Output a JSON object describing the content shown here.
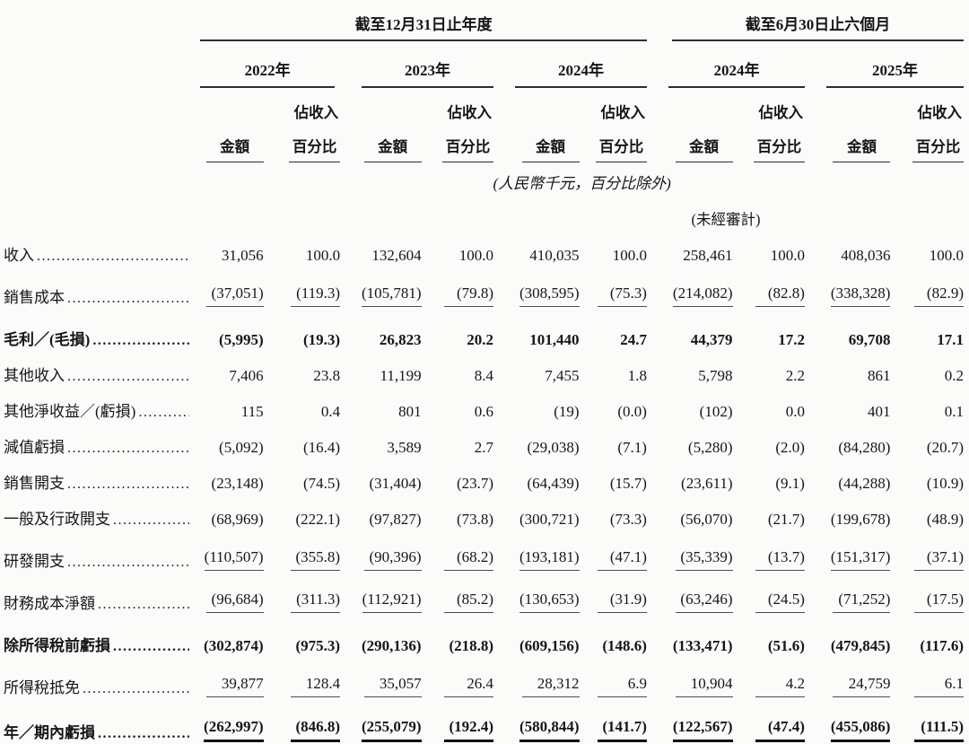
{
  "page": {
    "background": "#fbfbfa",
    "text_color": "#161616"
  },
  "table": {
    "group_headers": [
      {
        "label": "截至12月31日止年度"
      },
      {
        "label": "截至6月30日止六個月"
      }
    ],
    "year_headers": [
      "2022年",
      "2023年",
      "2024年",
      "2024年",
      "2025年"
    ],
    "subheader": {
      "share_label": "佔收入",
      "amount": "金額",
      "percent": "百分比"
    },
    "notes": {
      "units": "(人民幣千元，百分比除外)",
      "unaudited": "(未經審計)"
    },
    "leader_dots": "...........................................................",
    "rows": [
      {
        "label": "收入",
        "bold": false,
        "rule": "none",
        "values": [
          "31,056",
          "100.0",
          "132,604",
          "100.0",
          "410,035",
          "100.0",
          "258,461",
          "100.0",
          "408,036",
          "100.0"
        ]
      },
      {
        "label": "銷售成本",
        "bold": false,
        "rule": "single",
        "values": [
          "(37,051)",
          "(119.3)",
          "(105,781)",
          "(79.8)",
          "(308,595)",
          "(75.3)",
          "(214,082)",
          "(82.8)",
          "(338,328)",
          "(82.9)"
        ]
      },
      {
        "label": "毛利／(毛損)",
        "bold": true,
        "rule": "none",
        "values": [
          "(5,995)",
          "(19.3)",
          "26,823",
          "20.2",
          "101,440",
          "24.7",
          "44,379",
          "17.2",
          "69,708",
          "17.1"
        ]
      },
      {
        "label": "其他收入",
        "bold": false,
        "rule": "none",
        "values": [
          "7,406",
          "23.8",
          "11,199",
          "8.4",
          "7,455",
          "1.8",
          "5,798",
          "2.2",
          "861",
          "0.2"
        ]
      },
      {
        "label": "其他淨收益／(虧損)",
        "bold": false,
        "rule": "none",
        "values": [
          "115",
          "0.4",
          "801",
          "0.6",
          "(19)",
          "(0.0)",
          "(102)",
          "0.0",
          "401",
          "0.1"
        ]
      },
      {
        "label": "減值虧損",
        "bold": false,
        "rule": "none",
        "values": [
          "(5,092)",
          "(16.4)",
          "3,589",
          "2.7",
          "(29,038)",
          "(7.1)",
          "(5,280)",
          "(2.0)",
          "(84,280)",
          "(20.7)"
        ]
      },
      {
        "label": "銷售開支",
        "bold": false,
        "rule": "none",
        "values": [
          "(23,148)",
          "(74.5)",
          "(31,404)",
          "(23.7)",
          "(64,439)",
          "(15.7)",
          "(23,611)",
          "(9.1)",
          "(44,288)",
          "(10.9)"
        ]
      },
      {
        "label": "一般及行政開支",
        "bold": false,
        "rule": "none",
        "values": [
          "(68,969)",
          "(222.1)",
          "(97,827)",
          "(73.8)",
          "(300,721)",
          "(73.3)",
          "(56,070)",
          "(21.7)",
          "(199,678)",
          "(48.9)"
        ]
      },
      {
        "label": "研發開支",
        "bold": false,
        "rule": "single",
        "values": [
          "(110,507)",
          "(355.8)",
          "(90,396)",
          "(68.2)",
          "(193,181)",
          "(47.1)",
          "(35,339)",
          "(13.7)",
          "(151,317)",
          "(37.1)"
        ]
      },
      {
        "label": "財務成本淨額",
        "bold": false,
        "rule": "single",
        "values": [
          "(96,684)",
          "(311.3)",
          "(112,921)",
          "(85.2)",
          "(130,653)",
          "(31.9)",
          "(63,246)",
          "(24.5)",
          "(71,252)",
          "(17.5)"
        ]
      },
      {
        "label": "除所得稅前虧損",
        "bold": true,
        "rule": "none",
        "values": [
          "(302,874)",
          "(975.3)",
          "(290,136)",
          "(218.8)",
          "(609,156)",
          "(148.6)",
          "(133,471)",
          "(51.6)",
          "(479,845)",
          "(117.6)"
        ]
      },
      {
        "label": "所得稅抵免",
        "bold": false,
        "rule": "single",
        "values": [
          "39,877",
          "128.4",
          "35,057",
          "26.4",
          "28,312",
          "6.9",
          "10,904",
          "4.2",
          "24,759",
          "6.1"
        ]
      },
      {
        "label": "年／期內虧損",
        "bold": true,
        "rule": "double",
        "values": [
          "(262,997)",
          "(846.8)",
          "(255,079)",
          "(192.4)",
          "(580,844)",
          "(141.7)",
          "(122,567)",
          "(47.4)",
          "(455,086)",
          "(111.5)"
        ]
      }
    ]
  }
}
